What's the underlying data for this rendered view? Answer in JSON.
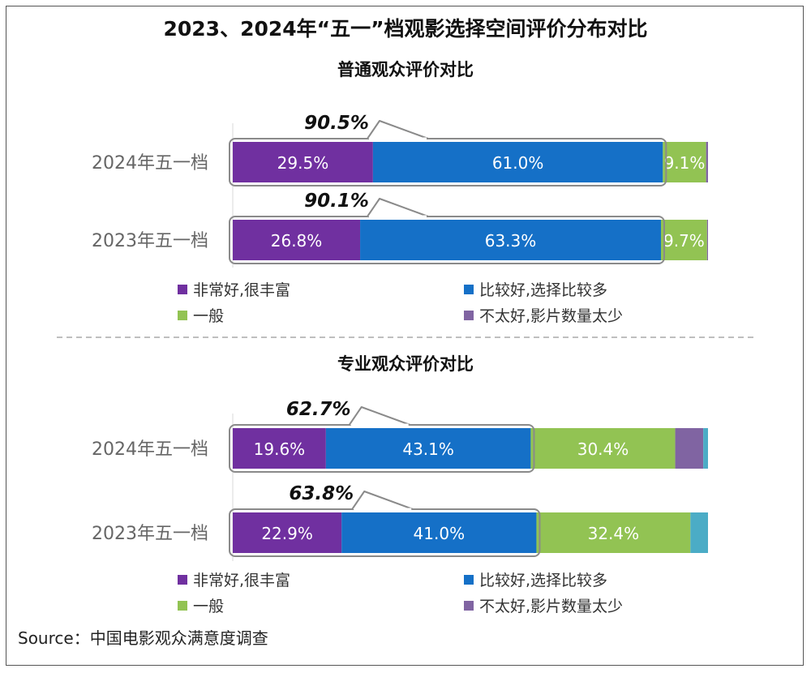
{
  "title": "2023、2024年“五一”档观影选择空间评价分布对比",
  "source": "Source：中国电影观众满意度调查",
  "legend": [
    {
      "label": "非常好,很丰富",
      "color": "#7030a0"
    },
    {
      "label": "比较好,选择比较多",
      "color": "#1570c7"
    },
    {
      "label": "一般",
      "color": "#92c353"
    },
    {
      "label": "不太好,影片数量太少",
      "color": "#8064a2"
    }
  ],
  "chart_data": [
    {
      "type": "bar",
      "orientation": "horizontal",
      "stacked": true,
      "title": "普通观众评价对比",
      "categories": [
        "2024年五一档",
        "2023年五一档"
      ],
      "series": [
        {
          "name": "非常好,很丰富",
          "values": [
            29.5,
            26.8
          ],
          "labels": [
            "29.5%",
            "26.8%"
          ]
        },
        {
          "name": "比较好,选择比较多",
          "values": [
            61.0,
            63.3
          ],
          "labels": [
            "61.0%",
            "63.3%"
          ]
        },
        {
          "name": "一般",
          "values": [
            9.1,
            9.7
          ],
          "labels": [
            "9.1%",
            "9.7%"
          ]
        },
        {
          "name": "不太好,影片数量太少",
          "values": [
            0.4,
            0.2
          ],
          "labels": [
            "",
            ""
          ]
        }
      ],
      "callouts": [
        "90.5%",
        "90.1%"
      ],
      "xlim": [
        0,
        100
      ]
    },
    {
      "type": "bar",
      "orientation": "horizontal",
      "stacked": true,
      "title": "专业观众评价对比",
      "categories": [
        "2024年五一档",
        "2023年五一档"
      ],
      "series": [
        {
          "name": "非常好,很丰富",
          "values": [
            19.6,
            22.9
          ],
          "labels": [
            "19.6%",
            "22.9%"
          ]
        },
        {
          "name": "比较好,选择比较多",
          "values": [
            43.1,
            41.0
          ],
          "labels": [
            "43.1%",
            "41.0%"
          ]
        },
        {
          "name": "一般",
          "values": [
            30.4,
            32.4
          ],
          "labels": [
            "30.4%",
            "32.4%"
          ]
        },
        {
          "name": "不太好,影片数量太少",
          "values": [
            5.9,
            0
          ],
          "labels": [
            "",
            ""
          ]
        },
        {
          "name": "",
          "values": [
            1.0,
            3.7
          ],
          "labels": [
            "",
            ""
          ],
          "color": "#4bacc6"
        }
      ],
      "callouts": [
        "62.7%",
        "63.8%"
      ],
      "xlim": [
        0,
        100
      ]
    }
  ]
}
